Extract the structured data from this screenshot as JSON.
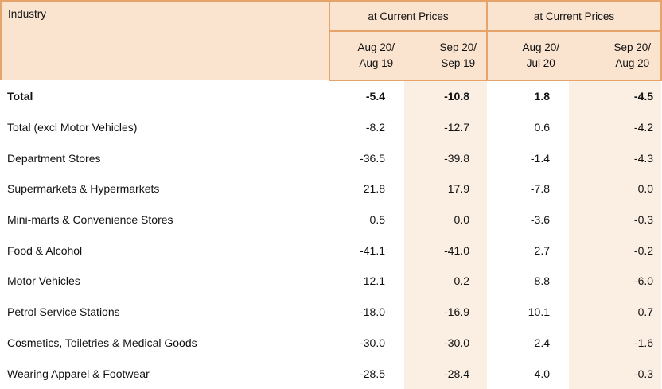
{
  "table": {
    "industry_header": "Industry",
    "group_headers": [
      "at Current Prices",
      "at Current Prices"
    ],
    "sub_headers": [
      {
        "line1": "Aug 20/",
        "line2": "Aug 19"
      },
      {
        "line1": "Sep 20/",
        "line2": "Sep 19"
      },
      {
        "line1": "Aug 20/",
        "line2": "Jul 20"
      },
      {
        "line1": "Sep 20/",
        "line2": "Aug 20"
      }
    ],
    "rows": [
      {
        "industry": "Total",
        "values": [
          "-5.4",
          "-10.8",
          "1.8",
          "-4.5"
        ]
      },
      {
        "industry": "Total (excl Motor Vehicles)",
        "values": [
          "-8.2",
          "-12.7",
          "0.6",
          "-4.2"
        ]
      },
      {
        "industry": "Department Stores",
        "values": [
          "-36.5",
          "-39.8",
          "-1.4",
          "-4.3"
        ]
      },
      {
        "industry": "Supermarkets & Hypermarkets",
        "values": [
          "21.8",
          "17.9",
          "-7.8",
          "0.0"
        ]
      },
      {
        "industry": "Mini-marts & Convenience Stores",
        "values": [
          "0.5",
          "0.0",
          "-3.6",
          "-0.3"
        ]
      },
      {
        "industry": "Food & Alcohol",
        "values": [
          "-41.1",
          "-41.0",
          "2.7",
          "-0.2"
        ]
      },
      {
        "industry": "Motor Vehicles",
        "values": [
          "12.1",
          "0.2",
          "8.8",
          "-6.0"
        ]
      },
      {
        "industry": "Petrol Service Stations",
        "values": [
          "-18.0",
          "-16.9",
          "10.1",
          "0.7"
        ]
      },
      {
        "industry": "Cosmetics, Toiletries & Medical Goods",
        "values": [
          "-30.0",
          "-30.0",
          "2.4",
          "-1.6"
        ]
      },
      {
        "industry": "Wearing Apparel & Footwear",
        "values": [
          "-28.5",
          "-28.4",
          "4.0",
          "-0.3"
        ]
      }
    ]
  }
}
